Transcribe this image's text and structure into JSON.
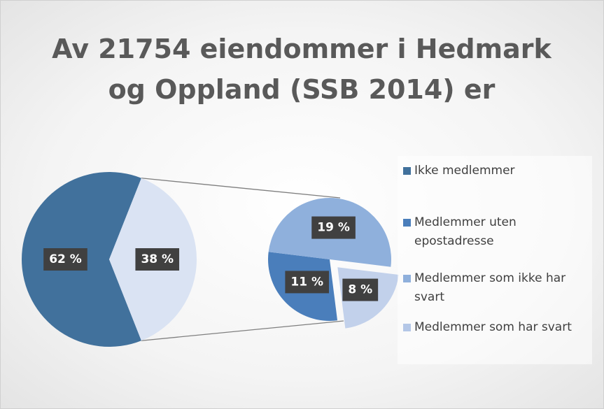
{
  "chart_data": {
    "type": "pie_of_pie",
    "title": "Av 21754 eiendommer i Hedmark og Oppland (SSB 2014) er",
    "categories": [
      "Ikke medlemmer",
      "Medlemmer uten epostadresse",
      "Medlemmer som ikke har svart",
      "Medlemmer som har svart"
    ],
    "values": [
      62,
      11,
      19,
      8
    ],
    "value_labels": [
      "62 %",
      "11 %",
      "19 %",
      "8 %"
    ],
    "colors": [
      "#41719c",
      "#4a7ebb",
      "#8fb0dc",
      "#b4c7e7"
    ],
    "secondary_total": 38,
    "secondary_total_label": "38 %",
    "secondary_total_color": "#dae3f3",
    "legend": "right"
  }
}
